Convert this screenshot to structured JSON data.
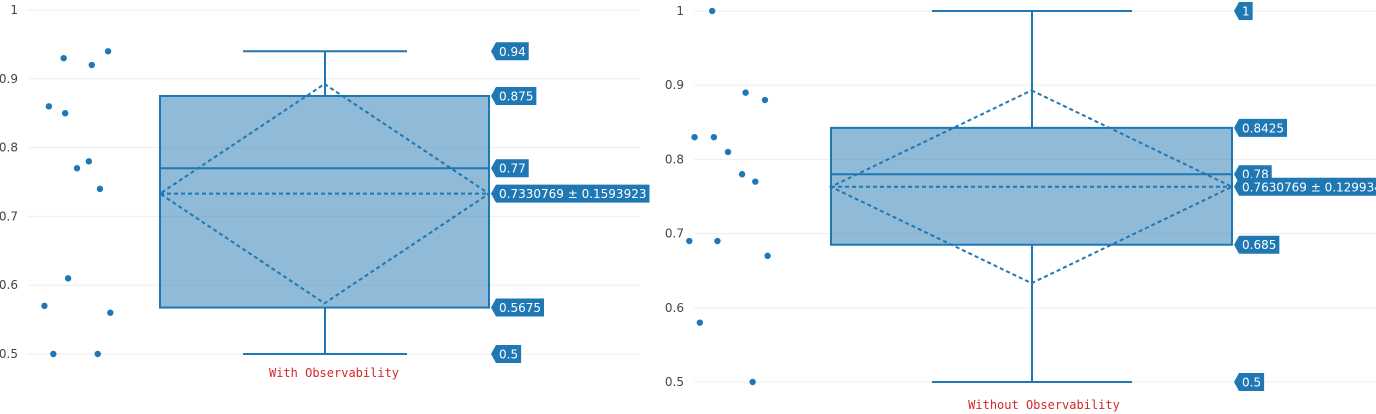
{
  "chart_data": [
    {
      "type": "box",
      "xlabel": "With Observability",
      "ylabel": "",
      "ylim": [
        0.5,
        1.0
      ],
      "y_ticks": [
        0.5,
        0.6,
        0.7,
        0.8,
        0.9,
        1
      ],
      "grid": true,
      "color": "#1f77b4",
      "stats": {
        "min": 0.5,
        "q1": 0.5675,
        "median": 0.77,
        "q3": 0.875,
        "max": 0.94,
        "mean": 0.7330769,
        "sd": 0.1593923
      },
      "value_labels": [
        "0.94",
        "0.875",
        "0.77",
        "0.7330769 ± 0.1593923",
        "0.5675",
        "0.5"
      ],
      "points": [
        0.93,
        0.92,
        0.94,
        0.86,
        0.85,
        0.77,
        0.78,
        0.74,
        0.61,
        0.57,
        0.56,
        0.5,
        0.5
      ]
    },
    {
      "type": "box",
      "xlabel": "Without Observability",
      "ylabel": "",
      "ylim": [
        0.5,
        1.0
      ],
      "y_ticks": [
        0.5,
        0.6,
        0.7,
        0.8,
        0.9,
        1
      ],
      "grid": true,
      "color": "#1f77b4",
      "stats": {
        "min": 0.5,
        "q1": 0.685,
        "median": 0.78,
        "q3": 0.8425,
        "max": 1.0,
        "mean": 0.7630769,
        "sd": 0.129934
      },
      "value_labels": [
        "1",
        "0.8425",
        "0.78",
        "0.7630769 ± 0.129934",
        "0.685",
        "0.5"
      ],
      "points": [
        1.0,
        0.89,
        0.88,
        0.83,
        0.83,
        0.81,
        0.78,
        0.77,
        0.69,
        0.69,
        0.67,
        0.58,
        0.5
      ]
    }
  ]
}
